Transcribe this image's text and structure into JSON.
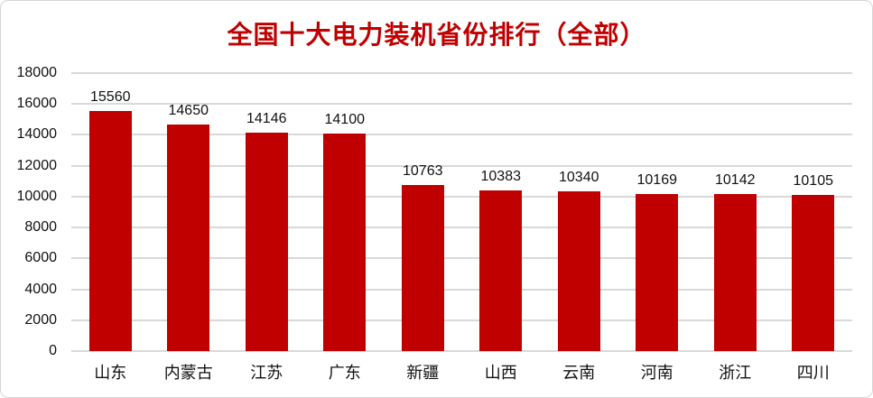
{
  "chart_data": {
    "type": "bar",
    "title": "全国十大电力装机省份排行（全部）",
    "categories": [
      "山东",
      "内蒙古",
      "江苏",
      "广东",
      "新疆",
      "山西",
      "云南",
      "河南",
      "浙江",
      "四川"
    ],
    "values": [
      15560,
      14650,
      14146,
      14100,
      10763,
      10383,
      10340,
      10169,
      10142,
      10105
    ],
    "data_labels": [
      15560,
      14650,
      14146,
      14100,
      10763,
      10383,
      10340,
      10169,
      10142,
      10105
    ],
    "xlabel": "",
    "ylabel": "",
    "ylim": [
      0,
      18000
    ],
    "yticks": [
      0,
      2000,
      4000,
      6000,
      8000,
      10000,
      12000,
      14000,
      16000,
      18000
    ],
    "grid": true,
    "legend": "none",
    "colors": {
      "bar": "#c00000",
      "title": "#c00000",
      "gridline": "#d9d9d9",
      "axis_text": "#111111"
    }
  }
}
